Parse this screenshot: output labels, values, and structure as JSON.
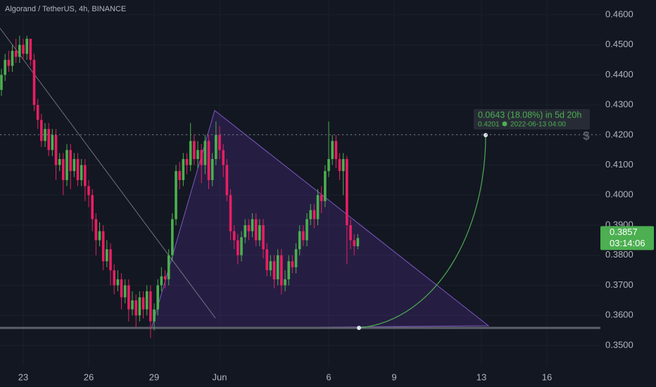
{
  "chart_data": {
    "type": "candlestick",
    "title": "Algorand / TetherUS, 4h, BINANCE",
    "up_color": "#4caf50",
    "down_color": "#e91e63",
    "xlim": [
      -1.065,
      26.45
    ],
    "ylim": [
      0.3432,
      0.4649
    ],
    "xticks": [
      {
        "value": 0,
        "label": "23"
      },
      {
        "value": 3,
        "label": "26"
      },
      {
        "value": 6,
        "label": "29"
      },
      {
        "value": 9,
        "label": "Jun"
      },
      {
        "value": 14,
        "label": "6"
      },
      {
        "value": 17,
        "label": "9"
      },
      {
        "value": 21,
        "label": "13"
      },
      {
        "value": 24,
        "label": "16"
      }
    ],
    "yticks": [
      {
        "value": 0.35,
        "label": "0.3500"
      },
      {
        "value": 0.36,
        "label": "0.3600"
      },
      {
        "value": 0.37,
        "label": "0.3700"
      },
      {
        "value": 0.38,
        "label": "0.3800"
      },
      {
        "value": 0.39,
        "label": "0.3900"
      },
      {
        "value": 0.4,
        "label": "0.4000"
      },
      {
        "value": 0.41,
        "label": "0.4100"
      },
      {
        "value": 0.42,
        "label": "0.4200"
      },
      {
        "value": 0.43,
        "label": "0.4300"
      },
      {
        "value": 0.44,
        "label": "0.4400"
      },
      {
        "value": 0.45,
        "label": "0.4500"
      },
      {
        "value": 0.46,
        "label": "0.4600"
      }
    ],
    "x": [
      -1,
      -0.833,
      -0.667,
      -0.5,
      -0.333,
      -0.167,
      0,
      0.167,
      0.333,
      0.5,
      0.667,
      0.833,
      1,
      1.167,
      1.333,
      1.5,
      1.667,
      1.833,
      2,
      2.167,
      2.333,
      2.5,
      2.667,
      2.833,
      3,
      3.167,
      3.333,
      3.5,
      3.667,
      3.833,
      4,
      4.167,
      4.333,
      4.5,
      4.667,
      4.833,
      5,
      5.167,
      5.333,
      5.5,
      5.667,
      5.833,
      6,
      6.167,
      6.333,
      6.5,
      6.667,
      6.833,
      7,
      7.167,
      7.333,
      7.5,
      7.667,
      7.833,
      8,
      8.167,
      8.333,
      8.5,
      8.667,
      8.833,
      9,
      9.167,
      9.333,
      9.5,
      9.667,
      9.833,
      10,
      10.167,
      10.333,
      10.5,
      10.667,
      10.833,
      11,
      11.167,
      11.333,
      11.5,
      11.667,
      11.833,
      12,
      12.167,
      12.333,
      12.5,
      12.667,
      12.833,
      13,
      13.167,
      13.333,
      13.5,
      13.667,
      13.833,
      14,
      14.167,
      14.333,
      14.5,
      14.667,
      14.833,
      15,
      15.167,
      15.333
    ],
    "open": [
      0.435,
      0.44,
      0.445,
      0.443,
      0.448,
      0.446,
      0.45,
      0.447,
      0.452,
      0.445,
      0.43,
      0.425,
      0.418,
      0.422,
      0.415,
      0.42,
      0.41,
      0.412,
      0.405,
      0.415,
      0.408,
      0.412,
      0.405,
      0.41,
      0.403,
      0.4,
      0.392,
      0.385,
      0.388,
      0.378,
      0.382,
      0.375,
      0.37,
      0.372,
      0.366,
      0.37,
      0.362,
      0.365,
      0.36,
      0.366,
      0.362,
      0.368,
      0.358,
      0.362,
      0.37,
      0.373,
      0.372,
      0.38,
      0.392,
      0.408,
      0.405,
      0.412,
      0.41,
      0.418,
      0.412,
      0.415,
      0.41,
      0.418,
      0.405,
      0.412,
      0.42,
      0.415,
      0.41,
      0.4,
      0.388,
      0.385,
      0.38,
      0.386,
      0.39,
      0.388,
      0.392,
      0.385,
      0.39,
      0.382,
      0.375,
      0.378,
      0.372,
      0.38,
      0.37,
      0.372,
      0.378,
      0.376,
      0.382,
      0.388,
      0.385,
      0.392,
      0.395,
      0.392,
      0.4,
      0.398,
      0.408,
      0.412,
      0.418,
      0.412,
      0.408,
      0.412,
      0.39,
      0.385,
      0.383
    ],
    "high": [
      0.442,
      0.447,
      0.448,
      0.45,
      0.452,
      0.453,
      0.452,
      0.453,
      0.452,
      0.447,
      0.432,
      0.427,
      0.424,
      0.424,
      0.422,
      0.422,
      0.414,
      0.414,
      0.417,
      0.417,
      0.414,
      0.414,
      0.412,
      0.412,
      0.405,
      0.402,
      0.394,
      0.391,
      0.39,
      0.385,
      0.384,
      0.377,
      0.375,
      0.374,
      0.372,
      0.372,
      0.368,
      0.367,
      0.368,
      0.368,
      0.37,
      0.37,
      0.364,
      0.372,
      0.376,
      0.375,
      0.382,
      0.394,
      0.41,
      0.411,
      0.414,
      0.414,
      0.424,
      0.42,
      0.418,
      0.417,
      0.42,
      0.42,
      0.414,
      0.4245,
      0.423,
      0.417,
      0.412,
      0.402,
      0.39,
      0.387,
      0.388,
      0.392,
      0.392,
      0.394,
      0.394,
      0.392,
      0.392,
      0.384,
      0.38,
      0.38,
      0.382,
      0.382,
      0.375,
      0.38,
      0.38,
      0.384,
      0.39,
      0.39,
      0.394,
      0.397,
      0.397,
      0.402,
      0.403,
      0.41,
      0.4245,
      0.42,
      0.42,
      0.414,
      0.414,
      0.413,
      0.392,
      0.387,
      0.387
    ],
    "low": [
      0.433,
      0.438,
      0.441,
      0.441,
      0.444,
      0.444,
      0.445,
      0.445,
      0.443,
      0.428,
      0.422,
      0.416,
      0.416,
      0.413,
      0.413,
      0.405,
      0.408,
      0.4,
      0.403,
      0.402,
      0.406,
      0.403,
      0.403,
      0.398,
      0.396,
      0.388,
      0.38,
      0.383,
      0.375,
      0.376,
      0.37,
      0.367,
      0.368,
      0.362,
      0.364,
      0.358,
      0.36,
      0.356,
      0.358,
      0.359,
      0.36,
      0.3525,
      0.355,
      0.36,
      0.368,
      0.369,
      0.37,
      0.378,
      0.39,
      0.402,
      0.403,
      0.407,
      0.408,
      0.41,
      0.409,
      0.404,
      0.407,
      0.402,
      0.403,
      0.41,
      0.412,
      0.406,
      0.398,
      0.385,
      0.382,
      0.377,
      0.378,
      0.384,
      0.385,
      0.386,
      0.383,
      0.383,
      0.379,
      0.373,
      0.373,
      0.369,
      0.37,
      0.367,
      0.368,
      0.37,
      0.374,
      0.374,
      0.38,
      0.383,
      0.383,
      0.39,
      0.389,
      0.39,
      0.394,
      0.396,
      0.406,
      0.41,
      0.409,
      0.405,
      0.4,
      0.377,
      0.382,
      0.38,
      0.382
    ],
    "close": [
      0.44,
      0.445,
      0.443,
      0.448,
      0.446,
      0.45,
      0.447,
      0.452,
      0.445,
      0.43,
      0.425,
      0.418,
      0.422,
      0.415,
      0.42,
      0.41,
      0.412,
      0.405,
      0.415,
      0.408,
      0.412,
      0.405,
      0.41,
      0.403,
      0.4,
      0.392,
      0.385,
      0.388,
      0.378,
      0.382,
      0.375,
      0.37,
      0.372,
      0.366,
      0.37,
      0.362,
      0.365,
      0.36,
      0.366,
      0.362,
      0.368,
      0.358,
      0.362,
      0.37,
      0.373,
      0.372,
      0.38,
      0.392,
      0.408,
      0.405,
      0.412,
      0.41,
      0.418,
      0.412,
      0.415,
      0.41,
      0.418,
      0.405,
      0.412,
      0.42,
      0.415,
      0.41,
      0.4,
      0.388,
      0.385,
      0.38,
      0.386,
      0.39,
      0.388,
      0.392,
      0.385,
      0.39,
      0.382,
      0.375,
      0.378,
      0.372,
      0.38,
      0.37,
      0.372,
      0.378,
      0.376,
      0.382,
      0.388,
      0.385,
      0.392,
      0.395,
      0.392,
      0.4,
      0.398,
      0.408,
      0.412,
      0.418,
      0.412,
      0.408,
      0.412,
      0.39,
      0.385,
      0.383,
      0.3857
    ],
    "last_price": 0.3857,
    "last_price_label": "0.3857",
    "countdown": "03:14:06",
    "measure": {
      "change": "0.0643 (18.08%) in 5d 20h",
      "target": 0.4201,
      "target_label": "0.4201",
      "date": "2022-06-13 04:00"
    }
  }
}
